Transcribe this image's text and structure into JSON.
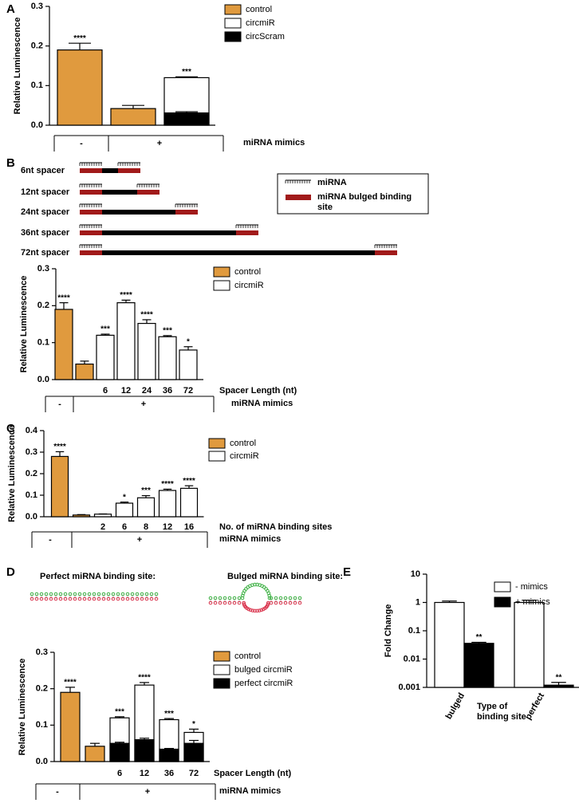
{
  "chart_data": [
    {
      "panel": "A",
      "type": "bar",
      "ylabel": "Relative Luminescence",
      "categories": [
        null,
        null,
        null
      ],
      "series": [
        {
          "name": "control",
          "color": "#e09a3e",
          "values": [
            0.19,
            0.042,
            null
          ],
          "errors": [
            0.017,
            0.008,
            null
          ],
          "annotations": [
            "****",
            null,
            null
          ]
        },
        {
          "name": "circmiR",
          "color": "#ffffff",
          "values": [
            null,
            null,
            0.12
          ],
          "errors": [
            null,
            null,
            0.002
          ],
          "annotations": [
            null,
            null,
            "***"
          ]
        },
        {
          "name": "circScram",
          "color": "#000000",
          "values": [
            null,
            null,
            0.031
          ],
          "errors": [
            null,
            null,
            0.003
          ],
          "annotations": [
            null,
            null,
            null
          ]
        }
      ],
      "ylim": [
        0,
        0.3
      ],
      "yticks": [
        {
          "value": 0,
          "label": "0.0"
        },
        0.1,
        0.2,
        0.3
      ],
      "group_labels": [
        "-",
        "+"
      ],
      "group_title": "miRNA mimics"
    },
    {
      "panel": "B",
      "type": "bar",
      "ylabel": "Relative Luminescence",
      "xlabel": "Spacer Length (nt)",
      "diagram": {
        "rows": [
          "6nt spacer",
          "12nt spacer",
          "24nt spacer",
          "36nt spacer",
          "72nt spacer"
        ],
        "legend": [
          "miRNA",
          "miRNA bulged binding site"
        ]
      },
      "categories": [
        null,
        null,
        "6",
        "12",
        "24",
        "36",
        "72"
      ],
      "series": [
        {
          "name": "control",
          "color": "#e09a3e",
          "values": [
            0.19,
            0.042,
            null,
            null,
            null,
            null,
            null
          ],
          "errors": [
            0.018,
            0.008,
            null,
            null,
            null,
            null,
            null
          ],
          "annotations": [
            "****",
            null,
            null,
            null,
            null,
            null,
            null
          ]
        },
        {
          "name": "circmiR",
          "color": "#ffffff",
          "values": [
            null,
            null,
            0.12,
            0.208,
            0.152,
            0.116,
            0.08
          ],
          "errors": [
            null,
            null,
            0.003,
            0.007,
            0.01,
            0.003,
            0.009
          ],
          "annotations": [
            null,
            null,
            "***",
            "****",
            "****",
            "***",
            "*"
          ]
        }
      ],
      "ylim": [
        0,
        0.3
      ],
      "yticks": [
        {
          "value": 0,
          "label": "0.0"
        },
        0.1,
        0.2,
        0.3
      ],
      "group_labels": [
        "-",
        "+"
      ],
      "group_title": "miRNA mimics"
    },
    {
      "panel": "C",
      "type": "bar",
      "ylabel": "Relative Luminescence",
      "xlabel": "No. of miRNA binding sites",
      "categories": [
        null,
        null,
        "2",
        "6",
        "8",
        "12",
        "16"
      ],
      "series": [
        {
          "name": "control",
          "color": "#e09a3e",
          "values": [
            0.28,
            0.008,
            null,
            null,
            null,
            null,
            null
          ],
          "errors": [
            0.022,
            0.002,
            null,
            null,
            null,
            null,
            null
          ],
          "annotations": [
            "****",
            null,
            null,
            null,
            null,
            null,
            null
          ]
        },
        {
          "name": "circmiR",
          "color": "#ffffff",
          "values": [
            null,
            null,
            0.012,
            0.063,
            0.088,
            0.122,
            0.132
          ],
          "errors": [
            null,
            null,
            0.001,
            0.005,
            0.01,
            0.006,
            0.012
          ],
          "annotations": [
            null,
            null,
            null,
            "*",
            "***",
            "****",
            "****"
          ]
        }
      ],
      "ylim": [
        0,
        0.4
      ],
      "yticks": [
        {
          "value": 0,
          "label": "0.0"
        },
        0.1,
        0.2,
        0.3,
        0.4
      ],
      "group_labels": [
        "-",
        "+"
      ],
      "group_title": "miRNA mimics"
    },
    {
      "panel": "D",
      "type": "bar",
      "ylabel": "Relative Luminescence",
      "xlabel": "Spacer Length (nt)",
      "diagram_labels": [
        "Perfect miRNA binding site:",
        "Bulged miRNA binding site:"
      ],
      "categories": [
        null,
        null,
        "6",
        "12",
        "36",
        "72"
      ],
      "series": [
        {
          "name": "control",
          "color": "#e09a3e",
          "values": [
            0.19,
            0.042,
            null,
            null,
            null,
            null
          ],
          "errors": [
            0.014,
            0.008,
            null,
            null,
            null,
            null
          ],
          "annotations": [
            "****",
            null,
            null,
            null,
            null,
            null
          ]
        },
        {
          "name": "bulged circmiR",
          "color": "#ffffff",
          "values": [
            null,
            null,
            0.12,
            0.21,
            0.115,
            0.08
          ],
          "errors": [
            null,
            null,
            0.003,
            0.007,
            0.003,
            0.009
          ],
          "annotations": [
            null,
            null,
            "***",
            "****",
            "***",
            "*"
          ]
        },
        {
          "name": "perfect circmiR",
          "color": "#000000",
          "values": [
            null,
            null,
            0.05,
            0.06,
            0.034,
            0.05
          ],
          "errors": [
            null,
            null,
            0.003,
            0.004,
            0.002,
            0.008
          ],
          "annotations": [
            null,
            null,
            null,
            null,
            null,
            null
          ]
        }
      ],
      "ylim": [
        0,
        0.3
      ],
      "yticks": [
        {
          "value": 0,
          "label": "0.0"
        },
        0.1,
        0.2,
        0.3
      ],
      "group_labels": [
        "-",
        "+"
      ],
      "group_title": "miRNA mimics"
    },
    {
      "panel": "E",
      "type": "grouped_bar",
      "ylabel": "Fold Change",
      "xlabel": "Type of binding site",
      "log": true,
      "categories": [
        "bulged",
        "perfect"
      ],
      "series": [
        {
          "name": "- mimics",
          "color": "#ffffff",
          "values": [
            1,
            1
          ],
          "errors": [
            0.12,
            0.2
          ],
          "annotations": [
            null,
            null
          ]
        },
        {
          "name": "+ mimics",
          "color": "#000000",
          "values": [
            0.036,
            0.0012
          ],
          "errors": [
            0.003,
            0.0003
          ],
          "annotations": [
            "**",
            "**"
          ]
        }
      ],
      "ylim": [
        0.001,
        10
      ],
      "yticks": [
        0.001,
        0.01,
        0.1,
        1,
        10
      ]
    }
  ]
}
